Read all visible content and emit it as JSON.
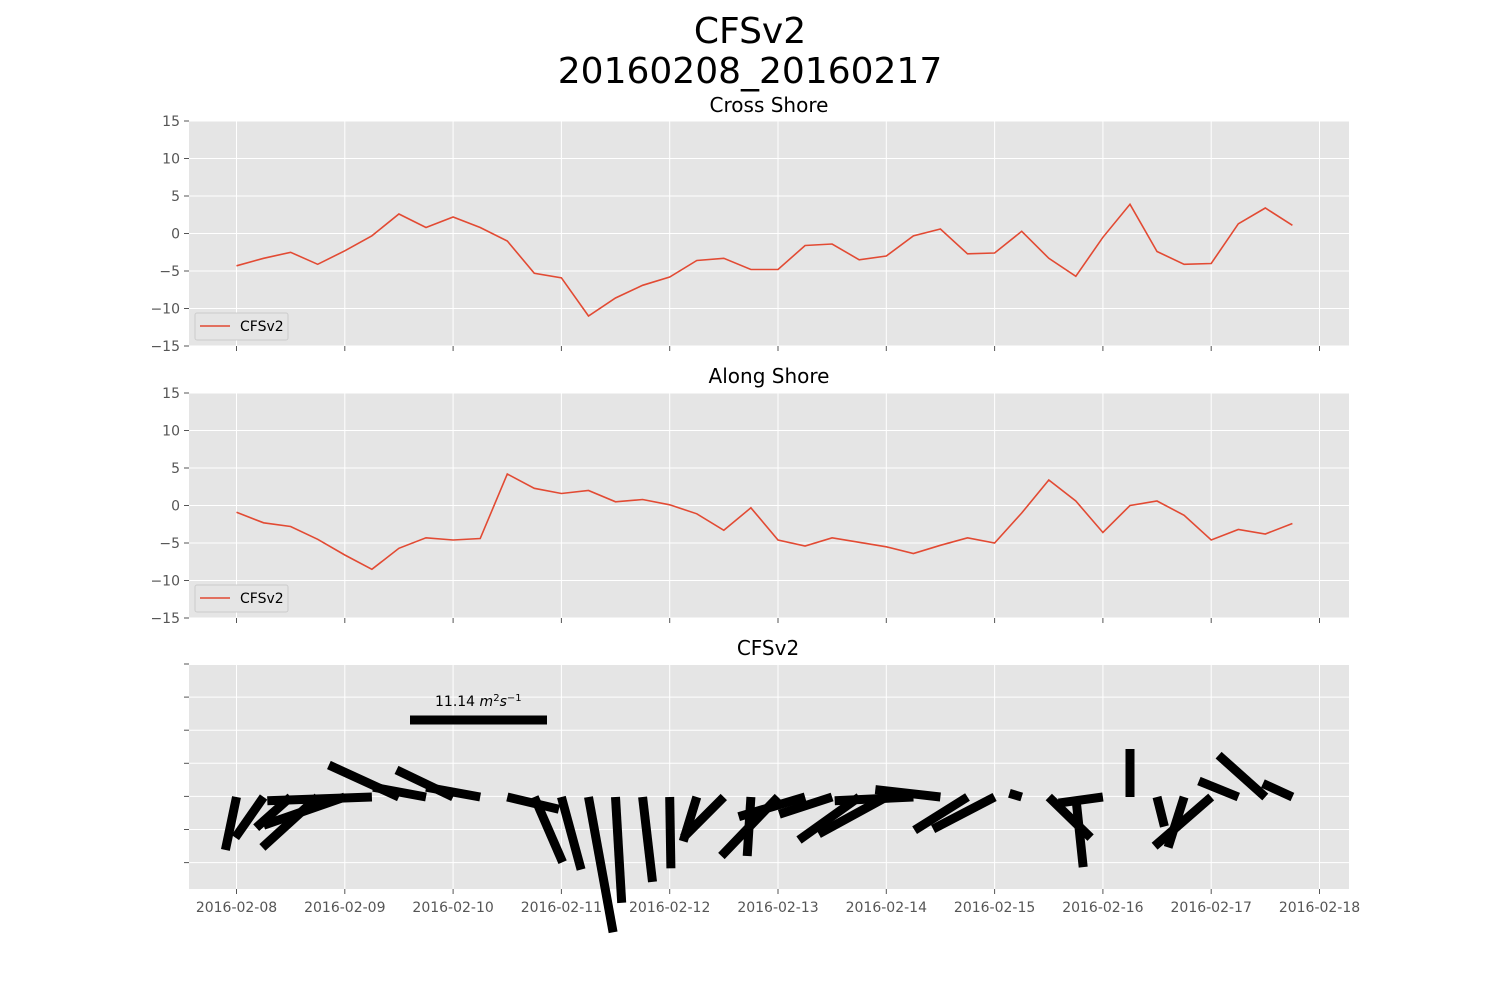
{
  "figure": {
    "title_line1": "CFSv2",
    "title_line2": "20160208_20160217"
  },
  "colors": {
    "line": "#E24A33",
    "panel_bg": "#E5E5E5",
    "grid": "#FFFFFF",
    "vector": "#000000",
    "tick_text": "#555555"
  },
  "chart_data": [
    {
      "type": "line",
      "title": "Cross Shore",
      "ylim": [
        -15,
        15
      ],
      "yticks": [
        "15",
        "10",
        "5",
        "0",
        "−5",
        "−10",
        "−15"
      ],
      "legend": {
        "placement": "lower-left",
        "entries": [
          "CFSv2"
        ]
      },
      "grid": true,
      "series": [
        {
          "name": "CFSv2",
          "x": [
            "2016-02-08 00:00",
            "2016-02-08 06:00",
            "2016-02-08 12:00",
            "2016-02-08 18:00",
            "2016-02-09 00:00",
            "2016-02-09 06:00",
            "2016-02-09 12:00",
            "2016-02-09 18:00",
            "2016-02-10 00:00",
            "2016-02-10 06:00",
            "2016-02-10 12:00",
            "2016-02-10 18:00",
            "2016-02-11 00:00",
            "2016-02-11 06:00",
            "2016-02-11 12:00",
            "2016-02-11 18:00",
            "2016-02-12 00:00",
            "2016-02-12 06:00",
            "2016-02-12 12:00",
            "2016-02-12 18:00",
            "2016-02-13 00:00",
            "2016-02-13 06:00",
            "2016-02-13 12:00",
            "2016-02-13 18:00",
            "2016-02-14 00:00",
            "2016-02-14 06:00",
            "2016-02-14 12:00",
            "2016-02-14 18:00",
            "2016-02-15 00:00",
            "2016-02-15 06:00",
            "2016-02-15 12:00",
            "2016-02-15 18:00",
            "2016-02-16 00:00",
            "2016-02-16 06:00",
            "2016-02-16 12:00",
            "2016-02-16 18:00",
            "2016-02-17 00:00",
            "2016-02-17 06:00",
            "2016-02-17 12:00",
            "2016-02-17 18:00"
          ],
          "values": [
            -4.3,
            -3.3,
            -2.5,
            -4.1,
            -2.3,
            -0.3,
            2.6,
            0.8,
            2.2,
            0.8,
            -1.0,
            -5.3,
            -5.9,
            -11.0,
            -8.6,
            -6.9,
            -5.8,
            -3.6,
            -3.3,
            -4.8,
            -4.8,
            -1.6,
            -1.4,
            -3.5,
            -3.0,
            -0.3,
            0.6,
            -2.7,
            -2.6,
            0.3,
            -3.3,
            -5.7,
            -0.5,
            3.9,
            -2.4,
            -4.1,
            -4.0,
            1.3,
            3.4,
            1.1
          ]
        }
      ]
    },
    {
      "type": "line",
      "title": "Along Shore",
      "ylim": [
        -15,
        15
      ],
      "yticks": [
        "15",
        "10",
        "5",
        "0",
        "−5",
        "−10",
        "−15"
      ],
      "legend": {
        "placement": "lower-left",
        "entries": [
          "CFSv2"
        ]
      },
      "grid": true,
      "series": [
        {
          "name": "CFSv2",
          "x": [
            "2016-02-08 00:00",
            "2016-02-08 06:00",
            "2016-02-08 12:00",
            "2016-02-08 18:00",
            "2016-02-09 00:00",
            "2016-02-09 06:00",
            "2016-02-09 12:00",
            "2016-02-09 18:00",
            "2016-02-10 00:00",
            "2016-02-10 06:00",
            "2016-02-10 12:00",
            "2016-02-10 18:00",
            "2016-02-11 00:00",
            "2016-02-11 06:00",
            "2016-02-11 12:00",
            "2016-02-11 18:00",
            "2016-02-12 00:00",
            "2016-02-12 06:00",
            "2016-02-12 12:00",
            "2016-02-12 18:00",
            "2016-02-13 00:00",
            "2016-02-13 06:00",
            "2016-02-13 12:00",
            "2016-02-13 18:00",
            "2016-02-14 00:00",
            "2016-02-14 06:00",
            "2016-02-14 12:00",
            "2016-02-14 18:00",
            "2016-02-15 00:00",
            "2016-02-15 06:00",
            "2016-02-15 12:00",
            "2016-02-15 18:00",
            "2016-02-16 00:00",
            "2016-02-16 06:00",
            "2016-02-16 12:00",
            "2016-02-16 18:00",
            "2016-02-17 00:00",
            "2016-02-17 06:00",
            "2016-02-17 12:00",
            "2016-02-17 18:00"
          ],
          "values": [
            -0.9,
            -2.3,
            -2.8,
            -4.5,
            -6.6,
            -8.5,
            -5.7,
            -4.3,
            -4.6,
            -4.4,
            4.2,
            2.3,
            1.6,
            2.0,
            0.5,
            0.8,
            0.1,
            -1.1,
            -3.3,
            -0.3,
            -4.6,
            -5.4,
            -4.3,
            -4.9,
            -5.5,
            -6.4,
            -5.3,
            -4.3,
            -5.0,
            -1.0,
            3.4,
            0.6,
            -3.6,
            0.0,
            0.6,
            -1.3,
            -4.6,
            -3.2,
            -3.8,
            -2.4
          ]
        }
      ]
    },
    {
      "type": "quiver",
      "title": "CFSv2",
      "grid": true,
      "xticks": [
        "2016-02-08",
        "2016-02-09",
        "2016-02-10",
        "2016-02-11",
        "2016-02-12",
        "2016-02-13",
        "2016-02-14",
        "2016-02-15",
        "2016-02-16",
        "2016-02-17",
        "2016-02-18"
      ],
      "key": {
        "label": "11.14 m²s⁻¹",
        "value": 11.14,
        "label_number": "11.14",
        "label_unit_base_m": "m",
        "label_unit_exp_m": "2",
        "label_unit_base_s": "s",
        "label_unit_exp_s": "−1"
      }
    }
  ]
}
